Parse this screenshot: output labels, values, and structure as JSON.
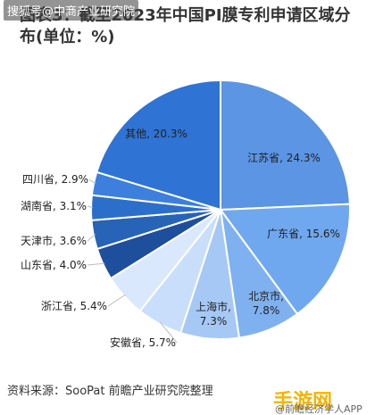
{
  "overlay_text": "搜狐号@中商产业研究院",
  "title": "图表3：截至2023年中国PI膜专利申请区域分布(单位：%)",
  "source": "资料来源：SooPat 前瞻产业研究院整理",
  "watermark_brand": "手游网",
  "watermark_sub": "@前瞻经济学人APP",
  "chart_data": {
    "type": "pie",
    "title": "图表3：截至2023年中国PI膜专利申请区域分布(单位：%)",
    "unit": "%",
    "start_angle_deg": 0,
    "direction": "clockwise",
    "categories": [
      "江苏省",
      "广东省",
      "北京市",
      "上海市",
      "安徽省",
      "浙江省",
      "山东省",
      "天津市",
      "湖南省",
      "四川省",
      "其他"
    ],
    "values": [
      24.3,
      15.6,
      7.8,
      7.3,
      5.7,
      5.4,
      4.0,
      3.6,
      3.1,
      2.9,
      20.3
    ],
    "labels": [
      "江苏省, 24.3%",
      "广东省, 15.6%",
      "北京市,\n7.8%",
      "上海市,\n7.3%",
      "安徽省, 5.7%",
      "浙江省, 5.4%",
      "山东省, 4.0%",
      "天津市, 3.6%",
      "湖南省, 3.1%",
      "四川省, 2.9%",
      "其他, 20.3%"
    ],
    "colors": [
      "#5b95e4",
      "#6fa8ee",
      "#7fb1f0",
      "#a6c8f5",
      "#c9defa",
      "#d9e8fc",
      "#1e4f9c",
      "#2763b7",
      "#2c6fcb",
      "#3d7fdc",
      "#2f73d4"
    ]
  }
}
